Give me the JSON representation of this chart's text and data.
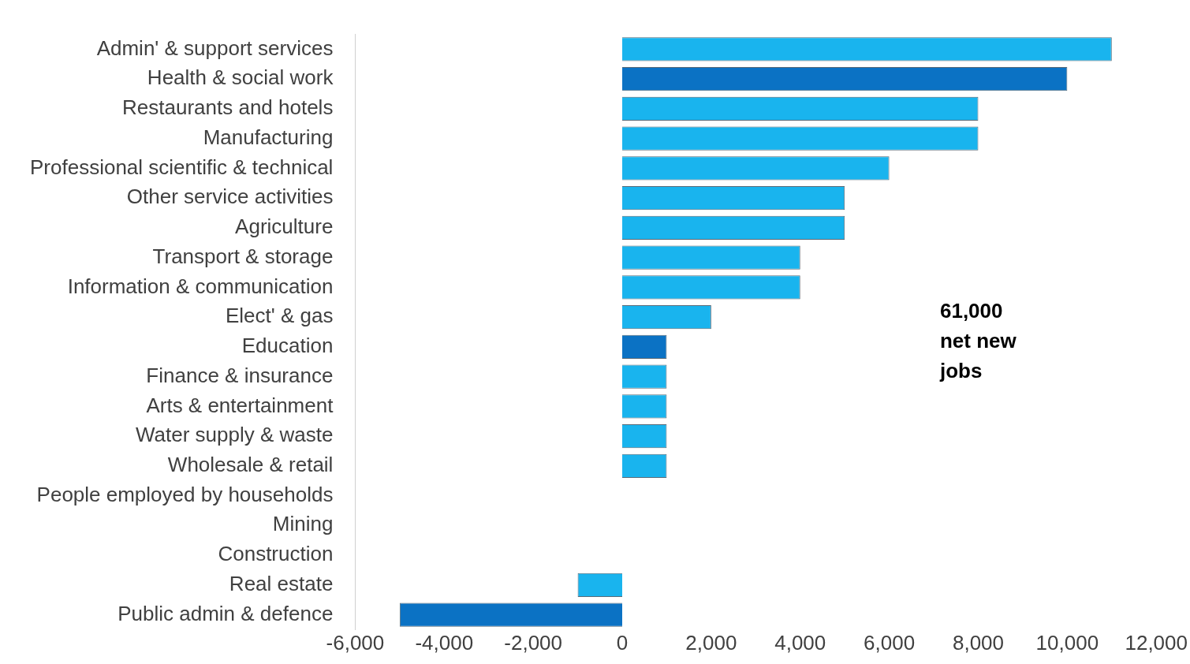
{
  "chart_data": {
    "type": "bar",
    "orientation": "horizontal",
    "categories": [
      "Admin' & support services",
      "Health & social work",
      "Restaurants and hotels",
      "Manufacturing",
      "Professional scientific & technical",
      "Other service activities",
      "Agriculture",
      "Transport & storage",
      "Information & communication",
      "Elect' & gas",
      "Education",
      "Finance & insurance",
      "Arts & entertainment",
      "Water supply & waste",
      "Wholesale & retail",
      "People employed by households",
      "Mining",
      "Construction",
      "Real estate",
      "Public admin & defence"
    ],
    "values": [
      11000,
      10000,
      8000,
      8000,
      6000,
      5000,
      5000,
      4000,
      4000,
      2000,
      1000,
      1000,
      1000,
      1000,
      1000,
      0,
      0,
      0,
      -1000,
      -5000
    ],
    "colors": [
      "#19b4ee",
      "#0b72c4",
      "#19b4ee",
      "#19b4ee",
      "#19b4ee",
      "#19b4ee",
      "#19b4ee",
      "#19b4ee",
      "#19b4ee",
      "#19b4ee",
      "#0b72c4",
      "#19b4ee",
      "#19b4ee",
      "#19b4ee",
      "#19b4ee",
      "#19b4ee",
      "#19b4ee",
      "#19b4ee",
      "#19b4ee",
      "#0b72c4"
    ],
    "xlim": [
      -6000,
      12000
    ],
    "xticks": [
      {
        "value": -6000,
        "label": "-6,000"
      },
      {
        "value": -4000,
        "label": "-4,000"
      },
      {
        "value": -2000,
        "label": "-2,000"
      },
      0,
      {
        "value": 2000,
        "label": "2,000"
      },
      {
        "value": 4000,
        "label": "4,000"
      },
      {
        "value": 6000,
        "label": "6,000"
      },
      {
        "value": 8000,
        "label": "8,000"
      },
      {
        "value": 10000,
        "label": "10,000"
      },
      {
        "value": 12000,
        "label": "12,000"
      }
    ],
    "grid": false,
    "legend": false,
    "annotations": [
      "61,000 net new jobs"
    ]
  }
}
